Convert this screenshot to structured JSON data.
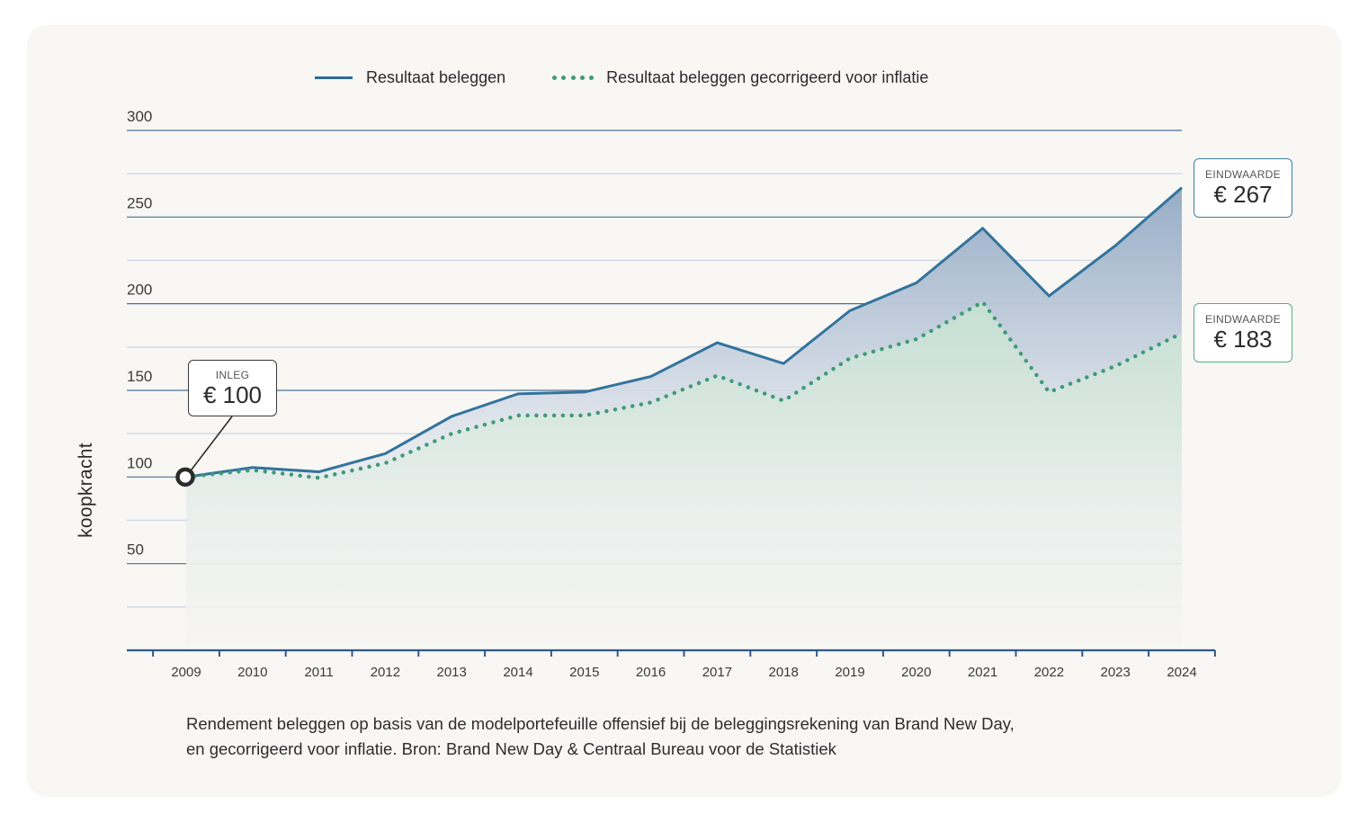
{
  "legend": {
    "series1": "Resultaat beleggen",
    "series2": "Resultaat beleggen gecorrigeerd voor inflatie"
  },
  "callouts": {
    "start": {
      "caption": "INLEG",
      "value": "€ 100"
    },
    "end_nominal": {
      "caption": "EINDWAARDE",
      "value": "€ 267"
    },
    "end_real": {
      "caption": "EINDWAARDE",
      "value": "€ 183"
    }
  },
  "caption": {
    "line1": "Rendement beleggen op basis van de modelportefeuille offensief bij de beleggingsrekening van Brand New Day,",
    "line2": "en gecorrigeerd voor inflatie. Bron: Brand New Day & Centraal Bureau voor de Statistiek"
  },
  "colors": {
    "nominal_line": "#33739c",
    "real_dots": "#3f9a78",
    "major_grid": "#2c5a8a",
    "minor_grid": "#d3dae4",
    "card_bg": "#f8f7f4"
  },
  "chart_data": {
    "type": "line",
    "title": "",
    "xlabel": "",
    "ylabel": "koopkracht",
    "ylim": [
      0,
      300
    ],
    "yticks": [
      50,
      100,
      150,
      200,
      250,
      300
    ],
    "minor_yticks": [
      25,
      75,
      125,
      175,
      225,
      275
    ],
    "grid": true,
    "legend_position": "top",
    "categories": [
      "2009",
      "2010",
      "2011",
      "2012",
      "2013",
      "2014",
      "2015",
      "2016",
      "2017",
      "2018",
      "2019",
      "2020",
      "2021",
      "2022",
      "2023",
      "2024"
    ],
    "series": [
      {
        "name": "Resultaat beleggen",
        "style": "solid",
        "fill": "area-gradient",
        "values": [
          100,
          105.5,
          103,
          113.5,
          135,
          148,
          149,
          158,
          177.5,
          165.5,
          196,
          212,
          243.5,
          204.5,
          233.5,
          267
        ]
      },
      {
        "name": "Resultaat beleggen gecorrigeerd voor inflatie",
        "style": "dotted",
        "fill": "area-gradient",
        "values": [
          100,
          104,
          99.5,
          108,
          125,
          135.5,
          135.5,
          143,
          158.5,
          144,
          168.5,
          179.5,
          201,
          149,
          164,
          183
        ]
      }
    ],
    "annotations": [
      {
        "label": "INLEG € 100",
        "x": "2009",
        "y": 100
      },
      {
        "label": "EINDWAARDE € 267",
        "x": "2024",
        "y": 267
      },
      {
        "label": "EINDWAARDE € 183",
        "x": "2024",
        "y": 183
      }
    ]
  }
}
